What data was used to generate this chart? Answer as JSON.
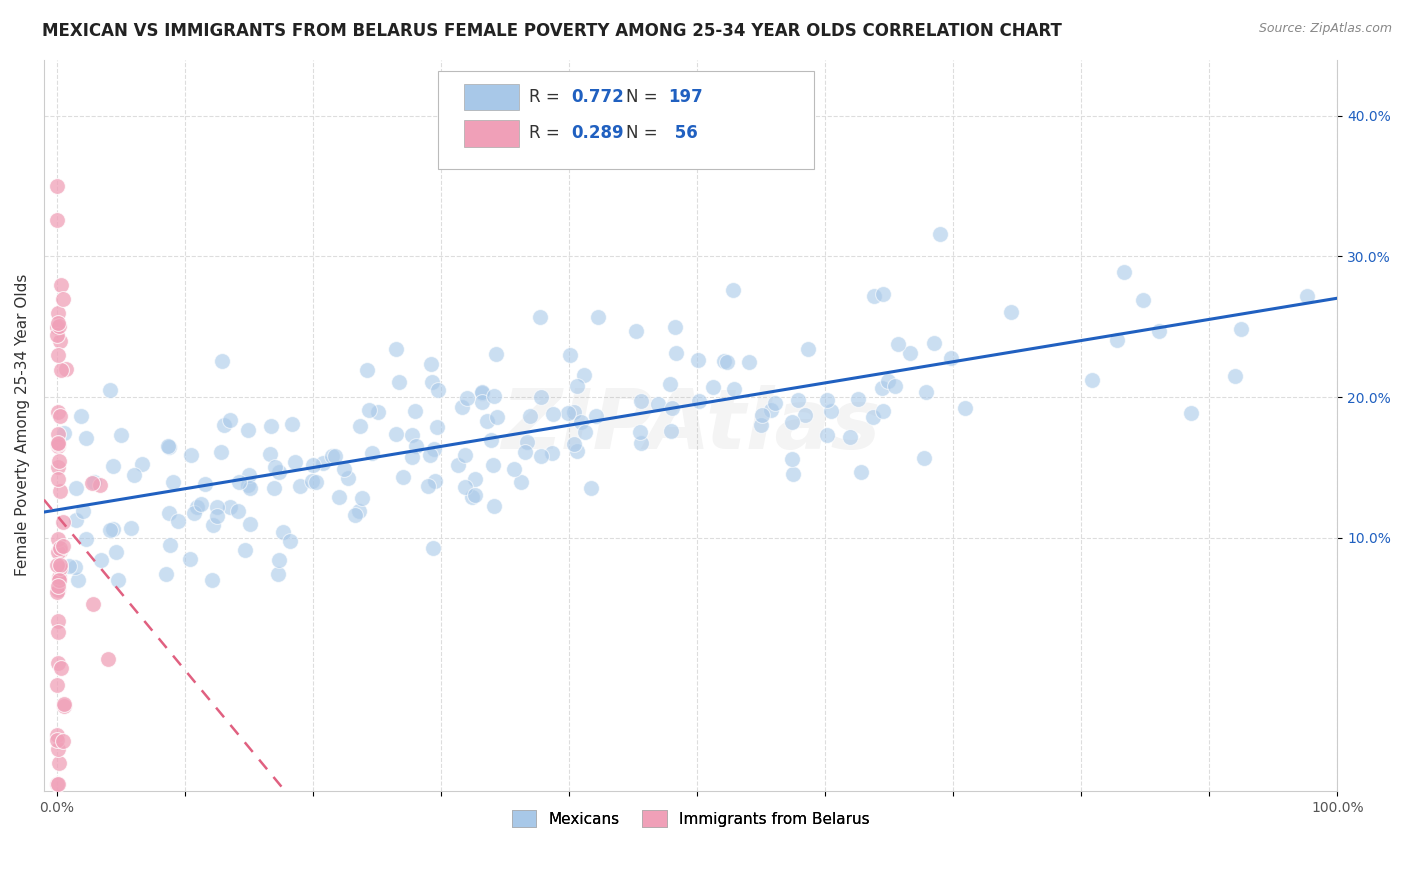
{
  "title": "MEXICAN VS IMMIGRANTS FROM BELARUS FEMALE POVERTY AMONG 25-34 YEAR OLDS CORRELATION CHART",
  "source": "Source: ZipAtlas.com",
  "ylabel": "Female Poverty Among 25-34 Year Olds",
  "xlim": [
    -0.01,
    1.0
  ],
  "ylim": [
    -0.08,
    0.44
  ],
  "xtick_positions": [
    0.0,
    0.1,
    0.2,
    0.3,
    0.4,
    0.5,
    0.6,
    0.7,
    0.8,
    0.9,
    1.0
  ],
  "xticklabels": [
    "0.0%",
    "",
    "",
    "",
    "",
    "",
    "",
    "",
    "",
    "",
    "100.0%"
  ],
  "ytick_positions": [
    0.1,
    0.2,
    0.3,
    0.4
  ],
  "ytick_labels": [
    "10.0%",
    "20.0%",
    "30.0%",
    "40.0%"
  ],
  "blue_scatter_color": "#a8c8e8",
  "pink_scatter_color": "#f0a0b8",
  "blue_line_color": "#2060c0",
  "pink_line_color": "#e06080",
  "R_blue": 0.772,
  "N_blue": 197,
  "R_pink": 0.289,
  "N_pink": 56,
  "legend_label_blue": "Mexicans",
  "legend_label_pink": "Immigrants from Belarus",
  "watermark": "ZIPAtlas",
  "title_fontsize": 12,
  "source_fontsize": 9,
  "axis_label_fontsize": 11,
  "tick_fontsize": 10,
  "scatter_size": 130,
  "scatter_alpha": 0.6
}
